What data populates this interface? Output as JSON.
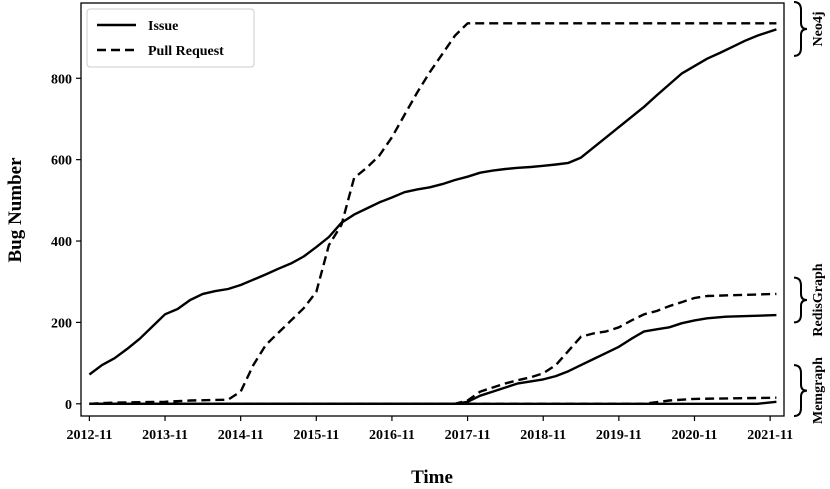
{
  "chart_data": {
    "type": "line",
    "title": "",
    "xlabel": "Time",
    "ylabel": "Bug Number",
    "x_ticks": [
      "2012-11",
      "2013-11",
      "2014-11",
      "2015-11",
      "2016-11",
      "2017-11",
      "2018-11",
      "2019-11",
      "2020-11",
      "2021-11"
    ],
    "y_ticks": [
      0,
      200,
      400,
      600,
      800
    ],
    "xlim": [
      "2012-11",
      "2021-12"
    ],
    "ylim": [
      -30,
      985
    ],
    "grid": false,
    "legend_position": "top-left",
    "series": [
      {
        "name": "Issue",
        "style": "solid",
        "group": "Neo4j",
        "points": [
          [
            "2012-11",
            72
          ],
          [
            "2013-01",
            95
          ],
          [
            "2013-03",
            112
          ],
          [
            "2013-05",
            135
          ],
          [
            "2013-07",
            160
          ],
          [
            "2013-09",
            190
          ],
          [
            "2013-11",
            220
          ],
          [
            "2014-01",
            233
          ],
          [
            "2014-03",
            255
          ],
          [
            "2014-05",
            270
          ],
          [
            "2014-07",
            277
          ],
          [
            "2014-09",
            282
          ],
          [
            "2014-11",
            292
          ],
          [
            "2015-01",
            305
          ],
          [
            "2015-03",
            318
          ],
          [
            "2015-05",
            332
          ],
          [
            "2015-07",
            345
          ],
          [
            "2015-09",
            362
          ],
          [
            "2015-11",
            385
          ],
          [
            "2016-01",
            410
          ],
          [
            "2016-03",
            445
          ],
          [
            "2016-05",
            465
          ],
          [
            "2016-07",
            480
          ],
          [
            "2016-09",
            495
          ],
          [
            "2016-11",
            507
          ],
          [
            "2017-01",
            520
          ],
          [
            "2017-03",
            527
          ],
          [
            "2017-05",
            532
          ],
          [
            "2017-07",
            540
          ],
          [
            "2017-09",
            550
          ],
          [
            "2017-11",
            558
          ],
          [
            "2018-01",
            568
          ],
          [
            "2018-03",
            573
          ],
          [
            "2018-05",
            577
          ],
          [
            "2018-07",
            580
          ],
          [
            "2018-09",
            582
          ],
          [
            "2018-11",
            585
          ],
          [
            "2019-01",
            588
          ],
          [
            "2019-03",
            592
          ],
          [
            "2019-05",
            605
          ],
          [
            "2019-07",
            630
          ],
          [
            "2019-09",
            655
          ],
          [
            "2019-11",
            680
          ],
          [
            "2020-01",
            705
          ],
          [
            "2020-03",
            730
          ],
          [
            "2020-05",
            758
          ],
          [
            "2020-07",
            785
          ],
          [
            "2020-09",
            812
          ],
          [
            "2020-11",
            830
          ],
          [
            "2021-01",
            848
          ],
          [
            "2021-03",
            862
          ],
          [
            "2021-05",
            877
          ],
          [
            "2021-07",
            892
          ],
          [
            "2021-09",
            905
          ],
          [
            "2021-12",
            920
          ]
        ]
      },
      {
        "name": "Pull Request",
        "style": "dashed",
        "group": "Neo4j",
        "points": [
          [
            "2012-11",
            0
          ],
          [
            "2013-03",
            3
          ],
          [
            "2013-11",
            5
          ],
          [
            "2014-03",
            8
          ],
          [
            "2014-09",
            10
          ],
          [
            "2014-11",
            30
          ],
          [
            "2015-01",
            95
          ],
          [
            "2015-03",
            145
          ],
          [
            "2015-05",
            175
          ],
          [
            "2015-07",
            205
          ],
          [
            "2015-09",
            235
          ],
          [
            "2015-11",
            275
          ],
          [
            "2016-01",
            390
          ],
          [
            "2016-03",
            440
          ],
          [
            "2016-05",
            555
          ],
          [
            "2016-07",
            580
          ],
          [
            "2016-09",
            610
          ],
          [
            "2016-11",
            655
          ],
          [
            "2017-01",
            710
          ],
          [
            "2017-03",
            765
          ],
          [
            "2017-05",
            815
          ],
          [
            "2017-07",
            860
          ],
          [
            "2017-09",
            905
          ],
          [
            "2017-11",
            935
          ],
          [
            "2018-01",
            935
          ],
          [
            "2021-12",
            935
          ]
        ]
      },
      {
        "name": "",
        "style": "solid",
        "group": "RedisGraph",
        "points": [
          [
            "2012-11",
            0
          ],
          [
            "2017-09",
            0
          ],
          [
            "2017-11",
            5
          ],
          [
            "2018-01",
            20
          ],
          [
            "2018-03",
            30
          ],
          [
            "2018-05",
            40
          ],
          [
            "2018-07",
            50
          ],
          [
            "2018-09",
            55
          ],
          [
            "2018-11",
            60
          ],
          [
            "2019-01",
            68
          ],
          [
            "2019-03",
            80
          ],
          [
            "2019-05",
            95
          ],
          [
            "2019-07",
            110
          ],
          [
            "2019-09",
            125
          ],
          [
            "2019-11",
            140
          ],
          [
            "2020-01",
            160
          ],
          [
            "2020-03",
            178
          ],
          [
            "2020-05",
            183
          ],
          [
            "2020-07",
            188
          ],
          [
            "2020-09",
            198
          ],
          [
            "2020-11",
            205
          ],
          [
            "2021-01",
            210
          ],
          [
            "2021-04",
            214
          ],
          [
            "2021-12",
            218
          ]
        ]
      },
      {
        "name": "",
        "style": "dashed",
        "group": "RedisGraph",
        "points": [
          [
            "2012-11",
            0
          ],
          [
            "2017-09",
            0
          ],
          [
            "2017-11",
            8
          ],
          [
            "2018-01",
            30
          ],
          [
            "2018-03",
            40
          ],
          [
            "2018-05",
            50
          ],
          [
            "2018-07",
            58
          ],
          [
            "2018-09",
            65
          ],
          [
            "2018-11",
            75
          ],
          [
            "2019-01",
            95
          ],
          [
            "2019-03",
            130
          ],
          [
            "2019-05",
            165
          ],
          [
            "2019-07",
            173
          ],
          [
            "2019-09",
            178
          ],
          [
            "2019-11",
            188
          ],
          [
            "2020-01",
            205
          ],
          [
            "2020-03",
            220
          ],
          [
            "2020-05",
            228
          ],
          [
            "2020-07",
            240
          ],
          [
            "2020-09",
            250
          ],
          [
            "2020-11",
            260
          ],
          [
            "2021-01",
            265
          ],
          [
            "2021-12",
            270
          ]
        ]
      },
      {
        "name": "",
        "style": "solid",
        "group": "Memgraph",
        "points": [
          [
            "2012-11",
            0
          ],
          [
            "2021-09",
            0
          ],
          [
            "2021-12",
            5
          ]
        ]
      },
      {
        "name": "",
        "style": "dashed",
        "group": "Memgraph",
        "points": [
          [
            "2012-11",
            0
          ],
          [
            "2020-03",
            0
          ],
          [
            "2020-07",
            8
          ],
          [
            "2020-11",
            12
          ],
          [
            "2021-12",
            15
          ]
        ]
      }
    ],
    "side_labels": [
      {
        "text": "Neo4j",
        "y_range": [
          855,
          990
        ]
      },
      {
        "text": "RedisGraph",
        "y_range": [
          200,
          310
        ]
      },
      {
        "text": "Memgraph",
        "y_range": [
          -30,
          95
        ]
      }
    ]
  }
}
